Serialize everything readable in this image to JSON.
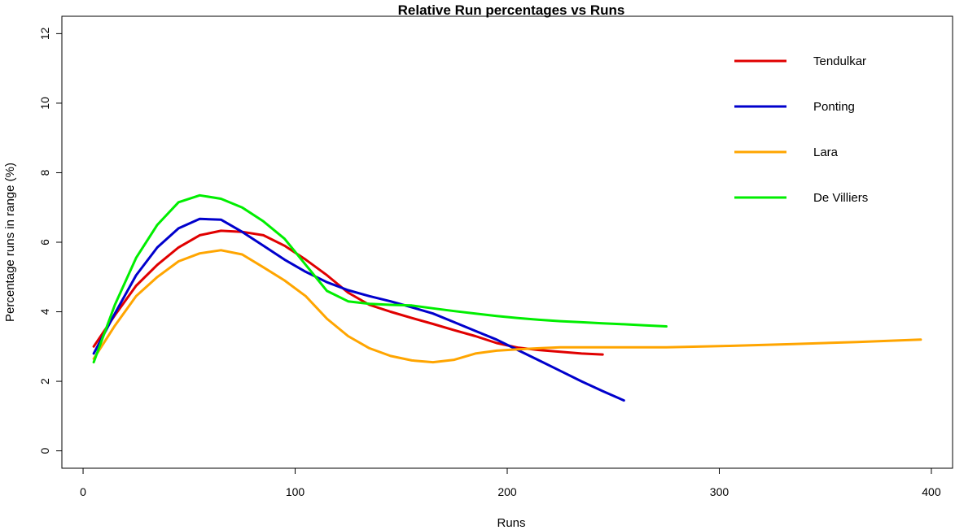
{
  "chart_data": {
    "type": "line",
    "title": "Relative Run percentages vs Runs",
    "xlabel": "Runs",
    "ylabel": "Percentage runs in range (%)",
    "xlim": [
      -10,
      410
    ],
    "ylim": [
      -0.5,
      12.5
    ],
    "xticks": [
      0,
      100,
      200,
      300,
      400
    ],
    "yticks": [
      0,
      2,
      4,
      6,
      8,
      10,
      12
    ],
    "grid": false,
    "legend_position": "top-right",
    "series": [
      {
        "name": "Tendulkar",
        "color": "#e00000",
        "x": [
          5,
          15,
          25,
          35,
          45,
          55,
          65,
          75,
          85,
          95,
          105,
          115,
          125,
          135,
          145,
          155,
          165,
          175,
          185,
          195,
          205,
          215,
          225,
          235,
          245
        ],
        "y": [
          3.0,
          3.9,
          4.75,
          5.35,
          5.85,
          6.2,
          6.33,
          6.3,
          6.2,
          5.9,
          5.5,
          5.05,
          4.55,
          4.2,
          4.0,
          3.82,
          3.65,
          3.47,
          3.3,
          3.1,
          2.97,
          2.9,
          2.85,
          2.8,
          2.77
        ]
      },
      {
        "name": "Ponting",
        "color": "#0000cc",
        "x": [
          5,
          15,
          25,
          35,
          45,
          55,
          65,
          75,
          85,
          95,
          105,
          115,
          125,
          135,
          145,
          155,
          165,
          175,
          185,
          195,
          205,
          215,
          225,
          235,
          245,
          255
        ],
        "y": [
          2.8,
          3.95,
          5.05,
          5.85,
          6.4,
          6.67,
          6.65,
          6.3,
          5.9,
          5.5,
          5.15,
          4.85,
          4.62,
          4.45,
          4.3,
          4.13,
          3.95,
          3.7,
          3.45,
          3.2,
          2.9,
          2.6,
          2.3,
          2.0,
          1.72,
          1.45
        ]
      },
      {
        "name": "Lara",
        "color": "#ffa500",
        "x": [
          5,
          15,
          25,
          35,
          45,
          55,
          65,
          75,
          85,
          95,
          105,
          115,
          125,
          135,
          145,
          155,
          165,
          175,
          185,
          195,
          205,
          215,
          225,
          245,
          275,
          305,
          335,
          365,
          395
        ],
        "y": [
          2.65,
          3.6,
          4.45,
          5.0,
          5.45,
          5.68,
          5.77,
          5.65,
          5.28,
          4.9,
          4.45,
          3.8,
          3.3,
          2.95,
          2.73,
          2.6,
          2.55,
          2.62,
          2.8,
          2.88,
          2.92,
          2.95,
          2.98,
          2.98,
          2.98,
          3.02,
          3.07,
          3.13,
          3.2
        ]
      },
      {
        "name": "De Villiers",
        "color": "#00ee00",
        "x": [
          5,
          15,
          25,
          35,
          45,
          55,
          65,
          75,
          85,
          95,
          105,
          115,
          125,
          135,
          145,
          155,
          165,
          175,
          185,
          195,
          205,
          215,
          225,
          235,
          245,
          255,
          265,
          275
        ],
        "y": [
          2.55,
          4.2,
          5.55,
          6.5,
          7.15,
          7.35,
          7.25,
          7.0,
          6.6,
          6.1,
          5.35,
          4.6,
          4.3,
          4.23,
          4.2,
          4.18,
          4.1,
          4.02,
          3.95,
          3.88,
          3.82,
          3.77,
          3.73,
          3.7,
          3.67,
          3.64,
          3.61,
          3.58
        ]
      }
    ]
  }
}
